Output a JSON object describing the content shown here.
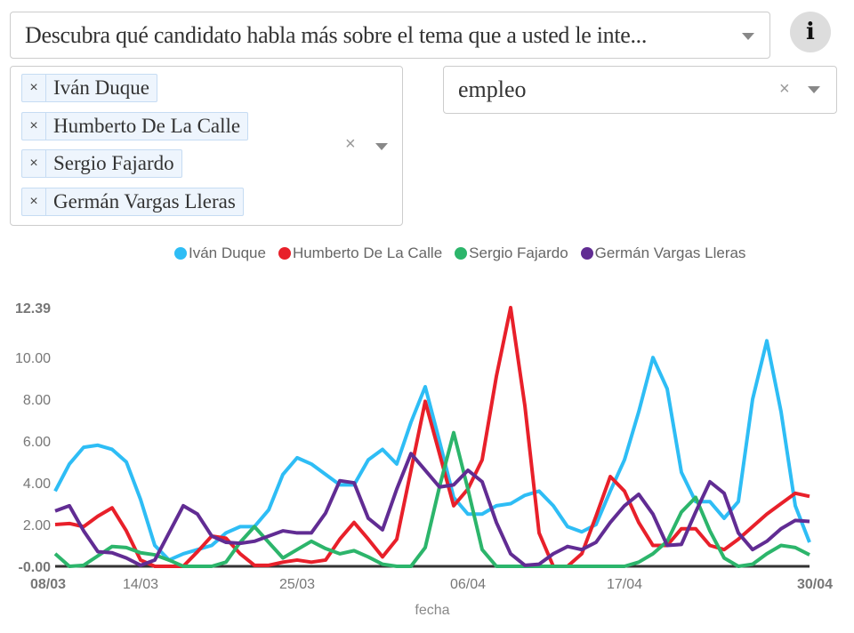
{
  "topic_select": {
    "value": "Descubra qué candidato habla más sobre el tema que a usted le inte..."
  },
  "info_button": {
    "label": "i",
    "icon": "info-icon"
  },
  "candidates_select": {
    "selected": [
      "Iván Duque",
      "Humberto De La Calle",
      "Sergio Fajardo",
      "Germán Vargas Lleras"
    ],
    "remove_label": "×",
    "clear_label": "×"
  },
  "tema_select": {
    "value": "empleo",
    "clear_label": "×"
  },
  "chart_data": {
    "type": "line",
    "title": "",
    "xlabel": "fecha",
    "ylabel": "",
    "ylim": [
      0,
      12.39
    ],
    "yticks": [
      "-0.00",
      "2.00",
      "4.00",
      "6.00",
      "8.00",
      "10.00",
      "12.39"
    ],
    "xticks": [
      "08/03",
      "14/03",
      "25/03",
      "06/04",
      "17/04",
      "30/04"
    ],
    "legend_position": "top",
    "x": [
      "08/03",
      "09/03",
      "10/03",
      "11/03",
      "12/03",
      "13/03",
      "14/03",
      "15/03",
      "16/03",
      "17/03",
      "18/03",
      "19/03",
      "20/03",
      "21/03",
      "22/03",
      "23/03",
      "24/03",
      "25/03",
      "26/03",
      "27/03",
      "28/03",
      "29/03",
      "30/03",
      "31/03",
      "01/04",
      "02/04",
      "03/04",
      "04/04",
      "05/04",
      "06/04",
      "07/04",
      "08/04",
      "09/04",
      "10/04",
      "11/04",
      "12/04",
      "13/04",
      "14/04",
      "15/04",
      "16/04",
      "17/04",
      "18/04",
      "19/04",
      "20/04",
      "21/04",
      "22/04",
      "23/04",
      "24/04",
      "25/04",
      "26/04",
      "27/04",
      "28/04",
      "29/04",
      "30/04"
    ],
    "series": [
      {
        "name": "Iván Duque",
        "color": "#2ebdf5",
        "values": [
          3.6,
          4.9,
          5.7,
          5.8,
          5.6,
          5.0,
          3.2,
          1.0,
          0.3,
          0.6,
          0.8,
          1.0,
          1.6,
          1.9,
          1.9,
          2.7,
          4.4,
          5.2,
          4.9,
          4.4,
          3.9,
          3.9,
          5.1,
          5.6,
          4.9,
          6.9,
          8.6,
          6.0,
          3.3,
          2.5,
          2.5,
          2.9,
          3.0,
          3.4,
          3.6,
          2.9,
          1.9,
          1.65,
          2.0,
          3.6,
          5.1,
          7.4,
          10.0,
          8.5,
          4.5,
          3.1,
          3.1,
          2.3,
          3.1,
          8.0,
          10.8,
          7.4,
          2.9,
          1.15
        ]
      },
      {
        "name": "Humberto De La Calle",
        "color": "#e8202a",
        "values": [
          2.0,
          2.05,
          1.9,
          2.4,
          2.8,
          1.7,
          0.3,
          0,
          0,
          0,
          0.7,
          1.45,
          1.35,
          0.6,
          0.05,
          0.05,
          0.2,
          0.3,
          0.2,
          0.3,
          1.3,
          2.1,
          1.3,
          0.45,
          1.3,
          4.6,
          7.9,
          5.4,
          2.9,
          3.7,
          5.1,
          9.1,
          12.39,
          7.7,
          1.6,
          0,
          0,
          0.6,
          2.4,
          4.3,
          3.6,
          2.1,
          1.0,
          1.0,
          1.8,
          1.8,
          1.0,
          0.8,
          1.3,
          1.9,
          2.5,
          3.0,
          3.5,
          3.35
        ]
      },
      {
        "name": "Sergio Fajardo",
        "color": "#2cb56b",
        "values": [
          0.6,
          0,
          0.05,
          0.5,
          0.95,
          0.9,
          0.65,
          0.55,
          0.3,
          0,
          0,
          0,
          0.2,
          1.15,
          1.9,
          1.15,
          0.4,
          0.8,
          1.2,
          0.85,
          0.6,
          0.75,
          0.45,
          0.1,
          0,
          0,
          0.9,
          3.8,
          6.4,
          3.7,
          0.8,
          0,
          0,
          0,
          0,
          0,
          0,
          0,
          0,
          0,
          0,
          0.2,
          0.6,
          1.2,
          2.6,
          3.3,
          1.7,
          0.4,
          0,
          0.1,
          0.6,
          1.0,
          0.9,
          0.55
        ]
      },
      {
        "name": "Germán Vargas Lleras",
        "color": "#612c93",
        "values": [
          2.65,
          2.9,
          1.7,
          0.7,
          0.65,
          0.4,
          0.05,
          0.3,
          1.6,
          2.9,
          2.5,
          1.45,
          1.15,
          1.1,
          1.2,
          1.45,
          1.7,
          1.6,
          1.6,
          2.55,
          4.1,
          4.0,
          2.3,
          1.75,
          3.7,
          5.4,
          4.6,
          3.8,
          3.9,
          4.6,
          4.05,
          2.1,
          0.6,
          0.05,
          0.1,
          0.6,
          0.95,
          0.8,
          1.15,
          2.1,
          2.9,
          3.45,
          2.5,
          1.0,
          1.05,
          2.6,
          4.05,
          3.5,
          1.6,
          0.8,
          1.2,
          1.8,
          2.2,
          2.15
        ]
      }
    ]
  }
}
